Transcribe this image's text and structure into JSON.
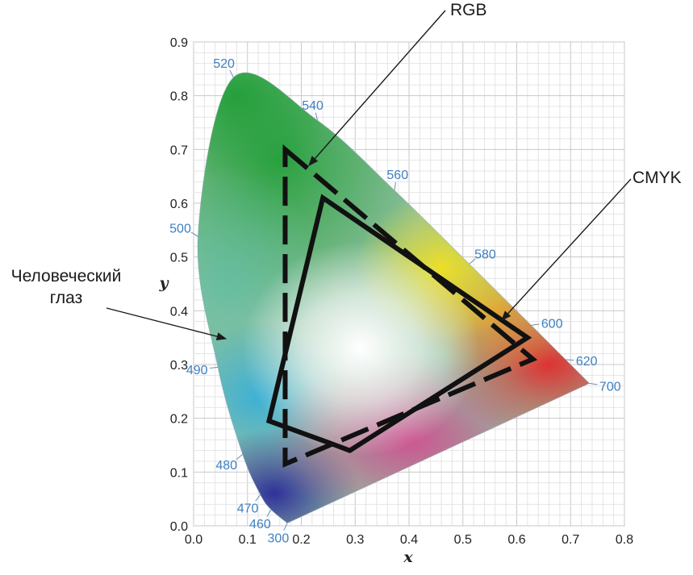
{
  "chart_data": {
    "type": "scatter",
    "title": "",
    "xlabel": "x",
    "ylabel": "y",
    "xlim": [
      0,
      0.8
    ],
    "ylim": [
      0,
      0.9
    ],
    "x_ticks": [
      "0.0",
      "0.1",
      "0.2",
      "0.3",
      "0.4",
      "0.5",
      "0.6",
      "0.7",
      "0.8"
    ],
    "y_ticks": [
      "0.0",
      "0.1",
      "0.2",
      "0.3",
      "0.4",
      "0.5",
      "0.6",
      "0.7",
      "0.8",
      "0.9"
    ],
    "grid": true,
    "spectral_locus": [
      {
        "label": "300",
        "x": 0.174,
        "y": 0.005
      },
      {
        "label": "460",
        "x": 0.144,
        "y": 0.03
      },
      {
        "label": "470",
        "x": 0.124,
        "y": 0.058
      },
      {
        "label": "480",
        "x": 0.091,
        "y": 0.133
      },
      {
        "label": "490",
        "x": 0.045,
        "y": 0.295
      },
      {
        "label": "500",
        "x": 0.008,
        "y": 0.538
      },
      {
        "label": "520",
        "x": 0.074,
        "y": 0.834
      },
      {
        "label": "540",
        "x": 0.23,
        "y": 0.754
      },
      {
        "label": "560",
        "x": 0.373,
        "y": 0.624
      },
      {
        "label": "580",
        "x": 0.512,
        "y": 0.487
      },
      {
        "label": "600",
        "x": 0.627,
        "y": 0.373
      },
      {
        "label": "620",
        "x": 0.691,
        "y": 0.309
      },
      {
        "label": "700",
        "x": 0.735,
        "y": 0.265
      }
    ],
    "series": [
      {
        "name": "RGB",
        "style": "dashed",
        "points": [
          [
            0.17,
            0.7
          ],
          [
            0.63,
            0.31
          ],
          [
            0.17,
            0.115
          ]
        ]
      },
      {
        "name": "CMYK",
        "style": "solid",
        "points": [
          [
            0.24,
            0.61
          ],
          [
            0.62,
            0.35
          ],
          [
            0.29,
            0.14
          ],
          [
            0.25,
            0.155
          ],
          [
            0.14,
            0.195
          ]
        ]
      }
    ],
    "annotations": [
      {
        "text": "RGB",
        "target": "RGB"
      },
      {
        "text": "CMYK",
        "target": "CMYK"
      },
      {
        "text": "Человеческий",
        "text2": "глаз",
        "target": "spectral_locus"
      }
    ]
  }
}
